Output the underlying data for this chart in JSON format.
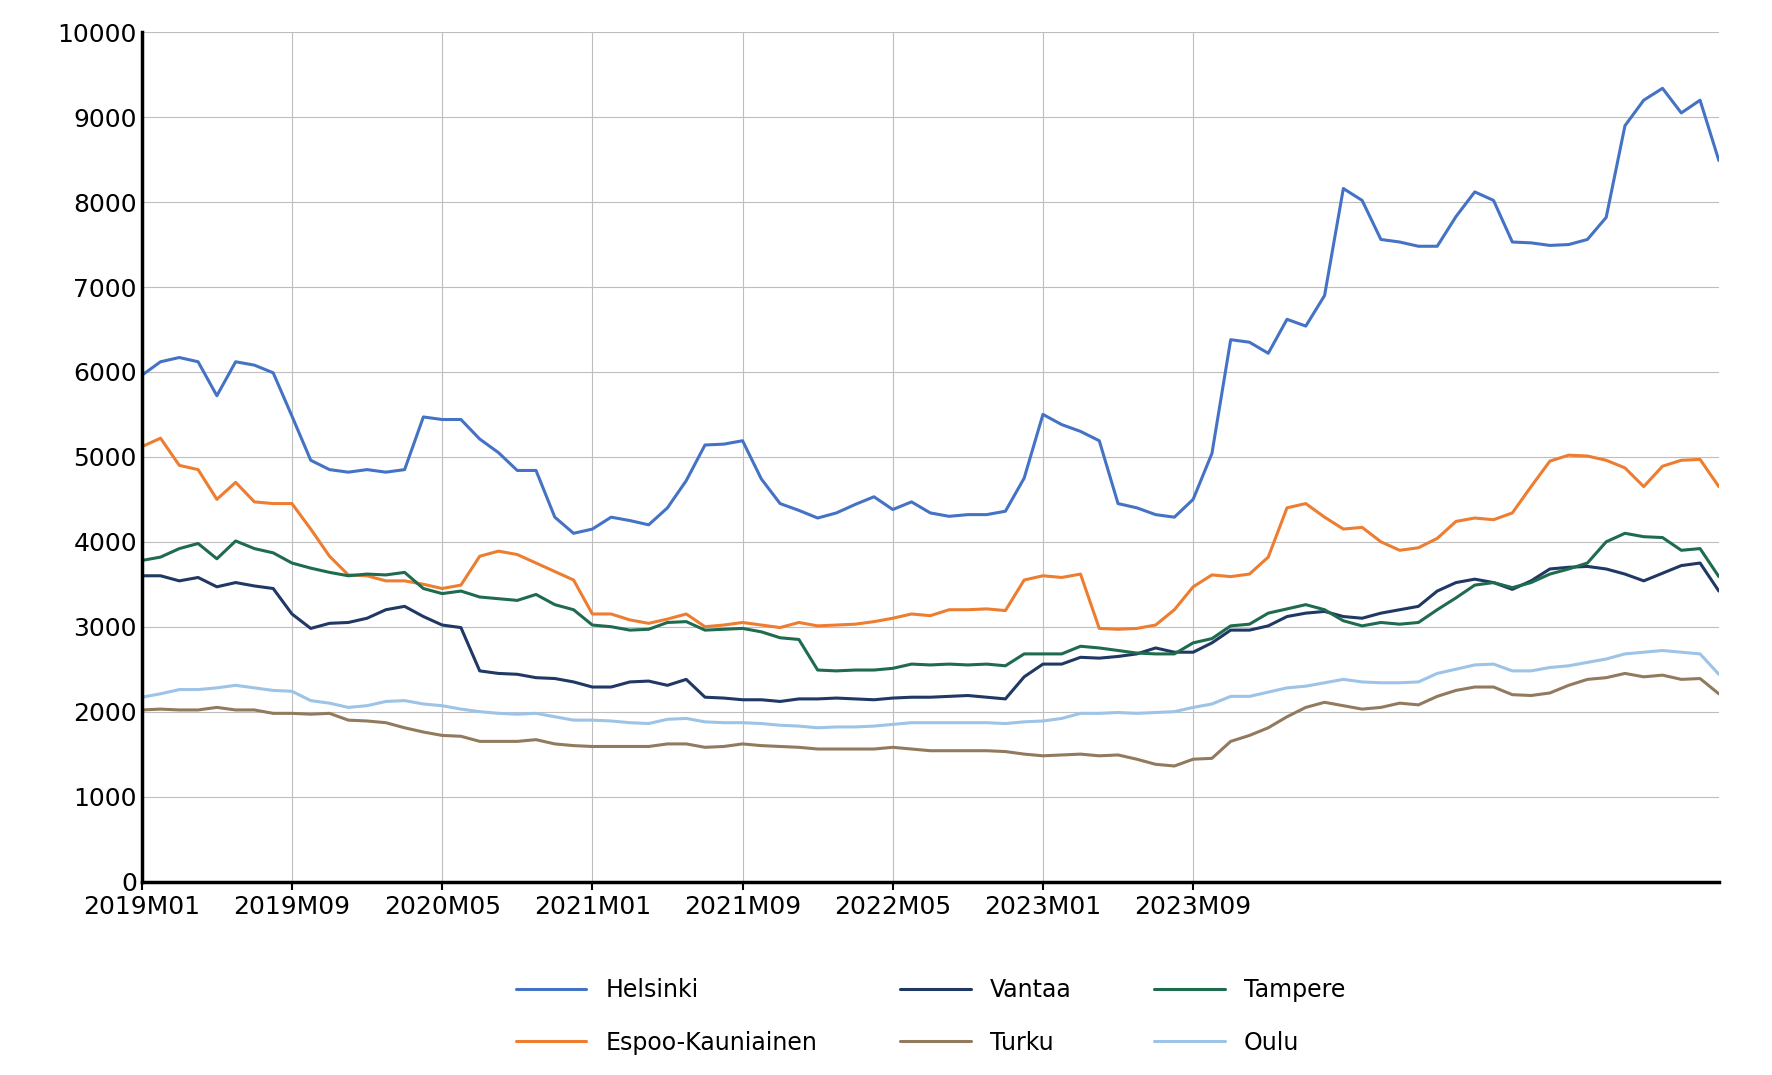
{
  "title": "",
  "cities": [
    "Helsinki",
    "Espoo-Kauniainen",
    "Vantaa",
    "Turku",
    "Tampere",
    "Oulu"
  ],
  "colors": [
    "#4472C4",
    "#ED7D31",
    "#1F3864",
    "#917A5E",
    "#1F6B4E",
    "#9DC3E6"
  ],
  "line_widths": [
    2.2,
    2.2,
    2.2,
    2.2,
    2.2,
    2.2
  ],
  "ylim": [
    0,
    10000
  ],
  "yticks": [
    0,
    1000,
    2000,
    3000,
    4000,
    5000,
    6000,
    7000,
    8000,
    9000,
    10000
  ],
  "xlabel": "",
  "ylabel": "",
  "background_color": "#FFFFFF",
  "x_tick_positions": [
    0,
    8,
    16,
    24,
    32,
    40,
    48,
    56
  ],
  "x_tick_labels": [
    "2019M01",
    "2019M09",
    "2020M05",
    "2021M01",
    "2021M09",
    "2022M05",
    "2023M01",
    "2023M09"
  ],
  "tick_fontsize": 18,
  "legend_fontsize": 17,
  "Helsinki": [
    5960,
    6120,
    6170,
    6120,
    5720,
    6120,
    6080,
    5990,
    5480,
    4960,
    4850,
    4820,
    4850,
    4820,
    4850,
    5470,
    5440,
    5440,
    5210,
    5050,
    4840,
    4840,
    4290,
    4100,
    4150,
    4290,
    4250,
    4200,
    4400,
    4720,
    5140,
    5150,
    5190,
    4740,
    4450,
    4370,
    4280,
    4340,
    4440,
    4530,
    4380,
    4470,
    4340,
    4300,
    4320,
    4320,
    4360,
    4750,
    5500,
    5380,
    5300,
    5190,
    4450,
    4400,
    4320,
    4290,
    4500,
    5040,
    6380,
    6350,
    6220,
    6620,
    6540,
    6900,
    8160,
    8020,
    7560,
    7530,
    7480,
    7480,
    7830,
    8120,
    8020,
    7530,
    7520,
    7490,
    7500,
    7560,
    7820,
    8900,
    9200,
    9340,
    9050,
    9200,
    8490
  ],
  "Espoo-Kauniainen": [
    5120,
    5220,
    4900,
    4850,
    4500,
    4700,
    4470,
    4450,
    4450,
    4150,
    3830,
    3610,
    3600,
    3540,
    3540,
    3500,
    3450,
    3490,
    3830,
    3890,
    3850,
    3750,
    3650,
    3550,
    3150,
    3150,
    3080,
    3040,
    3090,
    3150,
    3000,
    3020,
    3050,
    3020,
    2990,
    3050,
    3010,
    3020,
    3030,
    3060,
    3100,
    3150,
    3130,
    3200,
    3200,
    3210,
    3190,
    3550,
    3600,
    3580,
    3620,
    2980,
    2970,
    2980,
    3020,
    3200,
    3470,
    3610,
    3590,
    3620,
    3820,
    4400,
    4450,
    4290,
    4150,
    4170,
    4000,
    3900,
    3930,
    4040,
    4240,
    4280,
    4260,
    4340,
    4650,
    4950,
    5020,
    5010,
    4960,
    4870,
    4650,
    4890,
    4960,
    4970,
    4650
  ],
  "Vantaa": [
    3600,
    3600,
    3540,
    3580,
    3470,
    3520,
    3480,
    3450,
    3150,
    2980,
    3040,
    3050,
    3100,
    3200,
    3240,
    3120,
    3020,
    2990,
    2480,
    2450,
    2440,
    2400,
    2390,
    2350,
    2290,
    2290,
    2350,
    2360,
    2310,
    2380,
    2170,
    2160,
    2140,
    2140,
    2120,
    2150,
    2150,
    2160,
    2150,
    2140,
    2160,
    2170,
    2170,
    2180,
    2190,
    2170,
    2150,
    2410,
    2560,
    2560,
    2640,
    2630,
    2650,
    2680,
    2750,
    2700,
    2700,
    2810,
    2960,
    2960,
    3010,
    3120,
    3160,
    3180,
    3120,
    3100,
    3160,
    3200,
    3240,
    3420,
    3520,
    3560,
    3520,
    3440,
    3540,
    3680,
    3700,
    3710,
    3680,
    3620,
    3540,
    3630,
    3720,
    3750,
    3420
  ],
  "Turku": [
    2020,
    2030,
    2020,
    2020,
    2050,
    2020,
    2020,
    1980,
    1980,
    1970,
    1980,
    1900,
    1890,
    1870,
    1810,
    1760,
    1720,
    1710,
    1650,
    1650,
    1650,
    1670,
    1620,
    1600,
    1590,
    1590,
    1590,
    1590,
    1620,
    1620,
    1580,
    1590,
    1620,
    1600,
    1590,
    1580,
    1560,
    1560,
    1560,
    1560,
    1580,
    1560,
    1540,
    1540,
    1540,
    1540,
    1530,
    1500,
    1480,
    1490,
    1500,
    1480,
    1490,
    1440,
    1380,
    1360,
    1440,
    1450,
    1650,
    1720,
    1810,
    1940,
    2050,
    2110,
    2070,
    2030,
    2050,
    2100,
    2080,
    2180,
    2250,
    2290,
    2290,
    2200,
    2190,
    2220,
    2310,
    2380,
    2400,
    2450,
    2410,
    2430,
    2380,
    2390,
    2210
  ],
  "Tampere": [
    3780,
    3820,
    3920,
    3980,
    3800,
    4010,
    3920,
    3870,
    3750,
    3690,
    3640,
    3600,
    3620,
    3610,
    3640,
    3450,
    3390,
    3420,
    3350,
    3330,
    3310,
    3380,
    3260,
    3200,
    3020,
    3000,
    2960,
    2970,
    3050,
    3060,
    2960,
    2970,
    2980,
    2940,
    2870,
    2850,
    2490,
    2480,
    2490,
    2490,
    2510,
    2560,
    2550,
    2560,
    2550,
    2560,
    2540,
    2680,
    2680,
    2680,
    2770,
    2750,
    2720,
    2690,
    2680,
    2680,
    2810,
    2860,
    3010,
    3030,
    3160,
    3210,
    3260,
    3200,
    3070,
    3010,
    3050,
    3030,
    3050,
    3200,
    3340,
    3490,
    3520,
    3460,
    3520,
    3620,
    3680,
    3750,
    4000,
    4100,
    4060,
    4050,
    3900,
    3920,
    3590
  ],
  "Oulu": [
    2170,
    2210,
    2260,
    2260,
    2280,
    2310,
    2280,
    2250,
    2240,
    2130,
    2100,
    2050,
    2070,
    2120,
    2130,
    2090,
    2070,
    2030,
    2000,
    1980,
    1970,
    1980,
    1940,
    1900,
    1900,
    1890,
    1870,
    1860,
    1910,
    1920,
    1880,
    1870,
    1870,
    1860,
    1840,
    1830,
    1810,
    1820,
    1820,
    1830,
    1850,
    1870,
    1870,
    1870,
    1870,
    1870,
    1860,
    1880,
    1890,
    1920,
    1980,
    1980,
    1990,
    1980,
    1990,
    2000,
    2050,
    2090,
    2180,
    2180,
    2230,
    2280,
    2300,
    2340,
    2380,
    2350,
    2340,
    2340,
    2350,
    2450,
    2500,
    2550,
    2560,
    2480,
    2480,
    2520,
    2540,
    2580,
    2620,
    2680,
    2700,
    2720,
    2700,
    2680,
    2440
  ]
}
